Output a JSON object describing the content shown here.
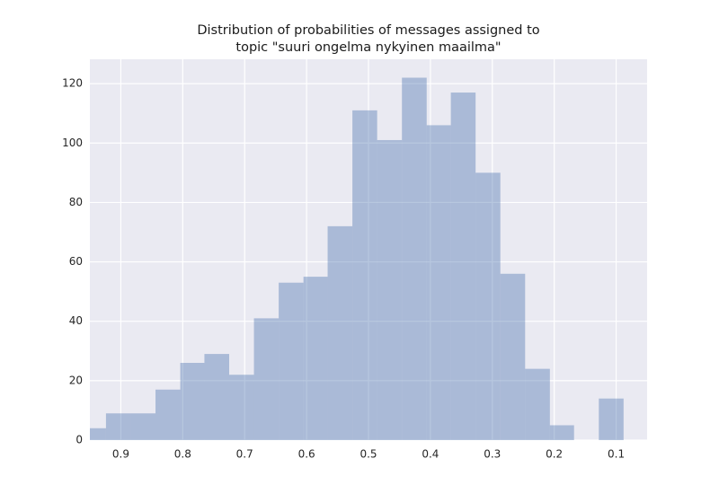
{
  "chart_data": {
    "type": "histogram",
    "title": [
      "Distribution of probabilities of messages assigned to",
      "topic \"suuri ongelma nykyinen maailma\""
    ],
    "bins": [
      0.088,
      0.128,
      0.168,
      0.207,
      0.247,
      0.287,
      0.327,
      0.367,
      0.406,
      0.446,
      0.486,
      0.526,
      0.566,
      0.605,
      0.645,
      0.685,
      0.725,
      0.765,
      0.804,
      0.844,
      0.884,
      0.924,
      0.964
    ],
    "values": [
      14,
      0,
      5,
      24,
      56,
      90,
      117,
      106,
      122,
      101,
      111,
      72,
      55,
      53,
      41,
      22,
      29,
      26,
      17,
      9,
      9,
      4
    ],
    "color": "#4c72b0",
    "alpha": 0.4,
    "xlim": [
      0.95,
      0.05
    ],
    "xticks": [
      0.9,
      0.8,
      0.7,
      0.6,
      0.5,
      0.4,
      0.3,
      0.2,
      0.1
    ],
    "ylim": [
      0,
      128.2
    ],
    "yticks": [
      0,
      20,
      40,
      60,
      80,
      100,
      120
    ],
    "grid": true,
    "background": "#eaeaf2"
  }
}
